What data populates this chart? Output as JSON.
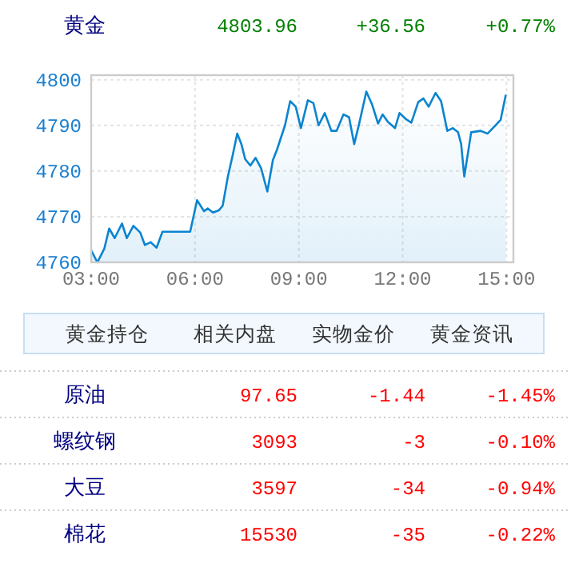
{
  "chart_data": [
    {
      "type": "area",
      "title": "黄金",
      "annotations": [
        "4803.96",
        "+36.56",
        "+0.77%"
      ],
      "xlim": [
        3,
        15.2
      ],
      "ylim": [
        4760,
        4801
      ],
      "xticks": [
        {
          "value": 3,
          "label": "03:00"
        },
        {
          "value": 6,
          "label": "06:00"
        },
        {
          "value": 9,
          "label": "09:00"
        },
        {
          "value": 12,
          "label": "12:00"
        },
        {
          "value": 15,
          "label": "15:00"
        }
      ],
      "yticks": [
        4760,
        4770,
        4780,
        4790,
        4800
      ],
      "grid": true,
      "series": [
        {
          "color": "#0a84d0",
          "x": [
            3.0,
            3.18,
            3.38,
            3.52,
            3.68,
            3.89,
            4.03,
            4.22,
            4.42,
            4.55,
            4.72,
            4.89,
            5.06,
            5.86,
            6.06,
            6.26,
            6.37,
            6.52,
            6.69,
            6.8,
            6.95,
            7.09,
            7.22,
            7.34,
            7.45,
            7.6,
            7.75,
            7.91,
            8.09,
            8.25,
            8.37,
            8.6,
            8.75,
            8.91,
            9.06,
            9.26,
            9.42,
            9.57,
            9.75,
            9.94,
            10.09,
            10.29,
            10.45,
            10.6,
            10.75,
            10.95,
            11.11,
            11.29,
            11.42,
            11.57,
            11.78,
            11.91,
            12.09,
            12.25,
            12.45,
            12.6,
            12.75,
            12.95,
            13.11,
            13.29,
            13.45,
            13.6,
            13.69,
            13.78,
            13.98,
            14.25,
            14.45,
            14.68,
            14.83,
            14.98
          ],
          "values": [
            4762.6,
            4760,
            4763,
            4767.4,
            4765.3,
            4768.5,
            4765.3,
            4768,
            4766.5,
            4763.8,
            4764.4,
            4763.2,
            4766.7,
            4766.7,
            4773.6,
            4771.2,
            4771.8,
            4770.9,
            4771.4,
            4772.4,
            4778.8,
            4783.5,
            4788.2,
            4785.9,
            4782.6,
            4781.2,
            4782.9,
            4780.6,
            4775.5,
            4782.4,
            4784.7,
            4790,
            4795.3,
            4794.1,
            4789.4,
            4795.5,
            4794.9,
            4790,
            4792.7,
            4788.8,
            4788.8,
            4792.4,
            4791.8,
            4785.9,
            4790.6,
            4797.4,
            4794.7,
            4790.4,
            4792.4,
            4790.8,
            4789.4,
            4792.7,
            4791.4,
            4790.6,
            4795.1,
            4795.9,
            4794.1,
            4797.1,
            4795.3,
            4788.8,
            4789.4,
            4788.5,
            4785.9,
            4778.8,
            4788.5,
            4788.8,
            4788.2,
            4790,
            4791.2,
            4796.7
          ]
        }
      ]
    },
    {
      "type": "other",
      "annotations": [
        "黄金持仓",
        "相关内盘",
        "实物金价",
        "黄金资讯"
      ],
      "categories": [
        "原油",
        "螺纹钢",
        "大豆",
        "棉花"
      ],
      "series": [
        {
          "color": "#ff0000",
          "values": [
            97.65,
            3093,
            3597,
            15530
          ],
          "value_labels": [
            "97.65",
            "3093",
            "3597",
            "15530"
          ]
        },
        {
          "color": "#ff0000",
          "values": [
            -1.44,
            -3,
            -34,
            -35
          ],
          "value_labels": [
            "-1.44",
            "-3",
            "-34",
            "-35"
          ]
        },
        {
          "color": "#ff0000",
          "values": [
            -1.45,
            -0.1,
            -0.94,
            -0.22
          ],
          "value_labels": [
            "-1.45%",
            "-0.10%",
            "-0.94%",
            "-0.22%"
          ]
        }
      ]
    }
  ]
}
